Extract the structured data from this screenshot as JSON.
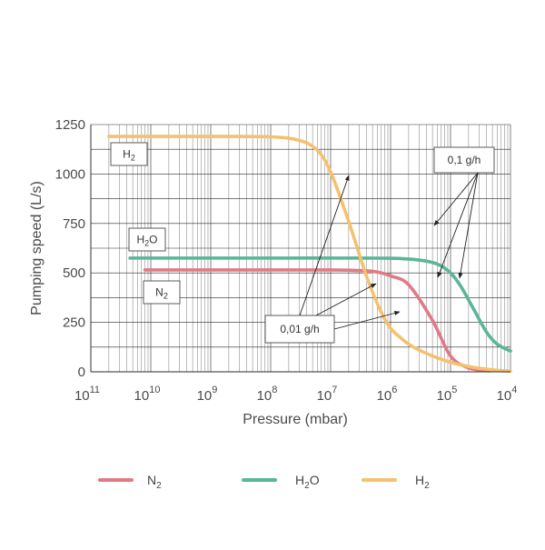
{
  "chart_data": {
    "type": "line",
    "title": "",
    "xlabel": "Pressure (mbar)",
    "ylabel": "Pumping speed (L/s)",
    "x_scale": "log",
    "x_reversed": true,
    "xlim": [
      1e-11,
      0.0001
    ],
    "ylim": [
      0,
      1250
    ],
    "grid": true,
    "y_ticks": [
      0,
      250,
      500,
      750,
      1000,
      1250
    ],
    "x_ticks": [
      {
        "value": 1e-11,
        "base": "10",
        "exp": "11"
      },
      {
        "value": 1e-10,
        "base": "10",
        "exp": "10"
      },
      {
        "value": 1e-09,
        "base": "10",
        "exp": "9"
      },
      {
        "value": 1e-08,
        "base": "10",
        "exp": "8"
      },
      {
        "value": 1e-07,
        "base": "10",
        "exp": "7"
      },
      {
        "value": 1e-06,
        "base": "10",
        "exp": "6"
      },
      {
        "value": 1e-05,
        "base": "10",
        "exp": "5"
      },
      {
        "value": 0.0001,
        "base": "10",
        "exp": "4"
      }
    ],
    "legend_position": "bottom",
    "series": [
      {
        "key": "N2",
        "legend_base": "N",
        "legend_sub": "2",
        "color": "#e07a86",
        "x": [
          8e-11,
          1e-09,
          1e-08,
          1e-07,
          3e-07,
          5e-07,
          7e-07,
          1e-06,
          2e-06,
          5e-06,
          1e-05,
          2e-05,
          4.5e-05
        ],
        "y": [
          515,
          515,
          515,
          515,
          512,
          508,
          500,
          485,
          440,
          260,
          80,
          20,
          5
        ]
      },
      {
        "key": "H2O",
        "legend_base": "H",
        "legend_sub": "2",
        "legend_tail": "O",
        "color": "#5ab59a",
        "x": [
          4.5e-11,
          1e-10,
          1e-09,
          1e-08,
          1e-07,
          1e-06,
          3e-06,
          6e-06,
          1e-05,
          1.5e-05,
          2.5e-05,
          4e-05,
          6e-05,
          0.0001
        ],
        "y": [
          575,
          575,
          575,
          575,
          575,
          574,
          565,
          545,
          500,
          430,
          310,
          200,
          140,
          105
        ]
      },
      {
        "key": "H2",
        "legend_base": "H",
        "legend_sub": "2",
        "color": "#f5c16e",
        "x": [
          2e-11,
          1e-10,
          1e-09,
          1e-08,
          3e-08,
          6e-08,
          1e-07,
          2e-07,
          4e-07,
          7e-07,
          1e-06,
          1.5e-06,
          2e-06,
          3e-06,
          5e-06,
          1e-05,
          2e-05,
          3e-05,
          5e-05,
          7e-05,
          0.0001
        ],
        "y": [
          1190,
          1190,
          1190,
          1188,
          1170,
          1120,
          1010,
          760,
          480,
          300,
          220,
          170,
          140,
          110,
          80,
          48,
          27,
          18,
          10,
          6,
          4
        ]
      }
    ],
    "annotations": [
      {
        "key": "h2_box",
        "text_base": "H",
        "text_sub": "2"
      },
      {
        "key": "h2o_box",
        "text_base": "H",
        "text_sub": "2",
        "text_tail": "O"
      },
      {
        "key": "n2_box",
        "text_base": "N",
        "text_sub": "2"
      },
      {
        "key": "flow_01",
        "text": "0,1 g/h"
      },
      {
        "key": "flow_001",
        "text": "0,01 g/h"
      }
    ]
  }
}
